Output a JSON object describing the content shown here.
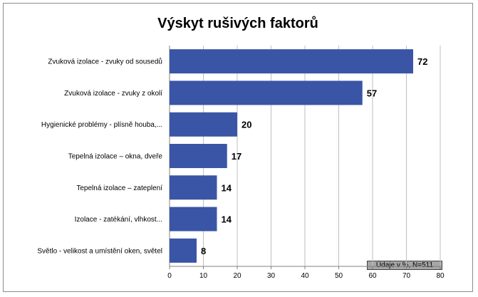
{
  "chart_data": {
    "type": "bar",
    "orientation": "horizontal",
    "title": "Výskyt rušivých faktorů",
    "categories": [
      "Zvuková izolace - zvuky od sousedů",
      "Zvuková izolace - zvuky  z okolí",
      "Hygienické problémy - plísně houba,...",
      "Tepelná izolace – okna, dveře",
      "Tepelná izolace – zateplení",
      "Izolace - zatékání, vlhkost...",
      "Světlo  - velikost a umístění oken, světel"
    ],
    "values": [
      72,
      57,
      20,
      17,
      14,
      14,
      8
    ],
    "xlim": [
      0,
      80
    ],
    "xticks": [
      0,
      10,
      20,
      30,
      40,
      50,
      60,
      70,
      80
    ],
    "bar_color": "#3a55a6",
    "grid": "vertical",
    "note": "Údaje v %, N=511"
  }
}
